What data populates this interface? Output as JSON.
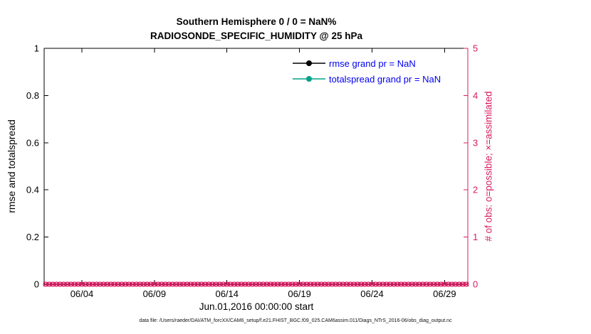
{
  "figure": {
    "title_line1": "Southern Hemisphere 0 / 0 = NaN%",
    "title_line2": "RADIOSONDE_SPECIFIC_HUMIDITY @ 25 hPa",
    "footer": "data file: /Users/raeder/DAI/ATM_forcXX/CAM6_setup/f.e21.FHIST_BGC.f09_025.CAM6assim.011/Diags_NTrS_2016-06/obs_diag_output.nc"
  },
  "legend": {
    "text_color": "#0000ee",
    "entries": [
      {
        "label": "rmse grand pr = NaN",
        "line_color": "#000000",
        "marker": "dot"
      },
      {
        "label": "totalspread grand pr = NaN",
        "line_color": "#00a287",
        "marker": "dot"
      }
    ]
  },
  "chart_data": {
    "type": "line",
    "title": "Southern Hemisphere 0 / 0 = NaN% — RADIOSONDE_SPECIFIC_HUMIDITY @ 25 hPa",
    "xlabel": "Jun.01,2016 00:00:00 start",
    "grid": false,
    "legend_position": "upper center-right, no box",
    "x_axis": {
      "range_days": [
        0.4,
        29.6
      ],
      "tick_days": [
        3,
        8,
        13,
        18,
        23,
        28
      ],
      "tick_labels": [
        "06/04",
        "06/09",
        "06/14",
        "06/19",
        "06/24",
        "06/29"
      ]
    },
    "left_axis": {
      "label": "rmse and totalspread",
      "color": "#000000",
      "range": [
        0,
        1
      ],
      "ticks": [
        0,
        0.2,
        0.4,
        0.6,
        0.8,
        1
      ],
      "tick_labels": [
        "0",
        "0.2",
        "0.4",
        "0.6",
        "0.8",
        "1"
      ]
    },
    "right_axis": {
      "label": "# of obs: o=possible; ×=assimilated",
      "color": "#d81b60",
      "range": [
        0,
        5
      ],
      "ticks": [
        0,
        1,
        2,
        3,
        4,
        5
      ],
      "tick_labels": [
        "0",
        "1",
        "2",
        "3",
        "4",
        "5"
      ]
    },
    "series": [
      {
        "name": "rmse grand pr",
        "axis": "left",
        "color": "#000000",
        "value": "NaN",
        "plotted_points": 0
      },
      {
        "name": "totalspread grand pr",
        "axis": "left",
        "color": "#00a287",
        "value": "NaN",
        "plotted_points": 0
      },
      {
        "name": "obs possible",
        "axis": "right",
        "color": "#d81b60",
        "marker": "o",
        "constant_value": 0,
        "start_day": 0.5,
        "end_day": 29.5,
        "step_days": 0.25
      },
      {
        "name": "obs assimilated",
        "axis": "right",
        "color": "#d81b60",
        "marker": "x",
        "constant_value": 0,
        "start_day": 0.5,
        "end_day": 29.5,
        "step_days": 0.25
      }
    ]
  }
}
